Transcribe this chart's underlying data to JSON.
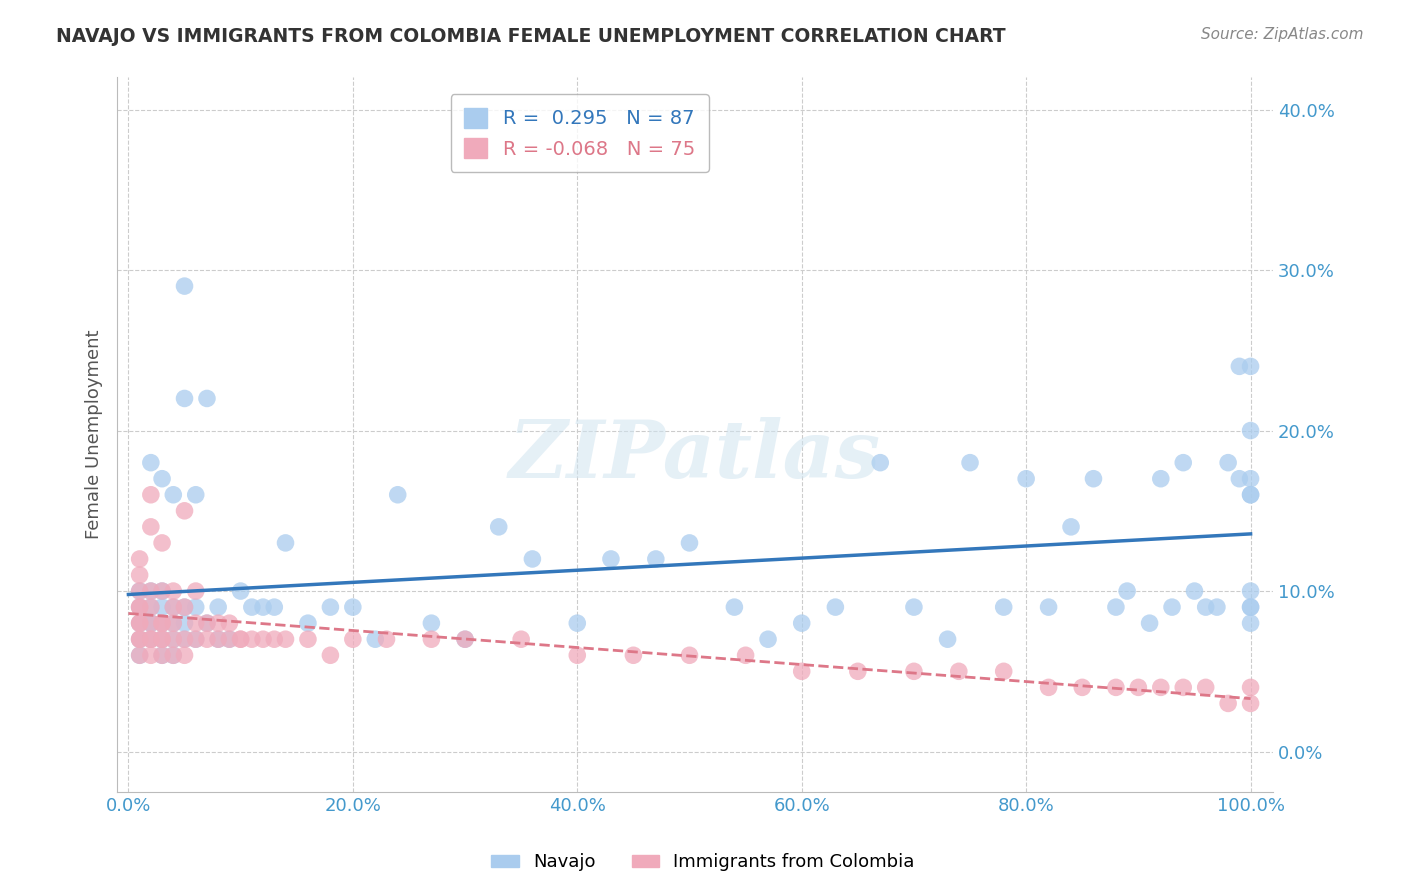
{
  "title": "NAVAJO VS IMMIGRANTS FROM COLOMBIA FEMALE UNEMPLOYMENT CORRELATION CHART",
  "source": "Source: ZipAtlas.com",
  "ylabel": "Female Unemployment",
  "watermark": "ZIPatlas",
  "xlim": [
    -0.01,
    1.02
  ],
  "ylim": [
    -0.025,
    0.42
  ],
  "xticks": [
    0.0,
    0.2,
    0.4,
    0.6,
    0.8,
    1.0
  ],
  "xticklabels": [
    "0.0%",
    "20.0%",
    "40.0%",
    "60.0%",
    "80.0%",
    "100.0%"
  ],
  "yticks": [
    0.0,
    0.1,
    0.2,
    0.3,
    0.4
  ],
  "yticklabels": [
    "0.0%",
    "10.0%",
    "20.0%",
    "30.0%",
    "40.0%"
  ],
  "navajo_R": 0.295,
  "navajo_N": 87,
  "colombia_R": -0.068,
  "colombia_N": 75,
  "navajo_color": "#aaccee",
  "colombia_color": "#f0aabb",
  "navajo_line_color": "#3377bb",
  "colombia_line_color": "#dd7788",
  "grid_color": "#cccccc",
  "background_color": "#ffffff",
  "title_color": "#333333",
  "axis_label_color": "#555555",
  "tick_color": "#4499cc",
  "navajo_x": [
    0.01,
    0.01,
    0.01,
    0.01,
    0.01,
    0.02,
    0.02,
    0.02,
    0.02,
    0.02,
    0.02,
    0.03,
    0.03,
    0.03,
    0.03,
    0.03,
    0.03,
    0.04,
    0.04,
    0.04,
    0.04,
    0.04,
    0.05,
    0.05,
    0.05,
    0.05,
    0.05,
    0.06,
    0.06,
    0.06,
    0.07,
    0.07,
    0.08,
    0.08,
    0.09,
    0.1,
    0.11,
    0.12,
    0.13,
    0.14,
    0.16,
    0.18,
    0.2,
    0.22,
    0.24,
    0.27,
    0.3,
    0.33,
    0.36,
    0.4,
    0.43,
    0.47,
    0.5,
    0.54,
    0.57,
    0.6,
    0.63,
    0.67,
    0.7,
    0.73,
    0.75,
    0.78,
    0.8,
    0.82,
    0.84,
    0.86,
    0.88,
    0.89,
    0.91,
    0.92,
    0.93,
    0.94,
    0.95,
    0.96,
    0.97,
    0.98,
    0.99,
    0.99,
    1.0,
    1.0,
    1.0,
    1.0,
    1.0,
    1.0,
    1.0,
    1.0,
    1.0
  ],
  "navajo_y": [
    0.07,
    0.08,
    0.06,
    0.09,
    0.1,
    0.07,
    0.08,
    0.09,
    0.1,
    0.08,
    0.18,
    0.06,
    0.07,
    0.08,
    0.09,
    0.1,
    0.17,
    0.06,
    0.07,
    0.08,
    0.09,
    0.16,
    0.07,
    0.08,
    0.09,
    0.22,
    0.29,
    0.07,
    0.09,
    0.16,
    0.08,
    0.22,
    0.07,
    0.09,
    0.07,
    0.1,
    0.09,
    0.09,
    0.09,
    0.13,
    0.08,
    0.09,
    0.09,
    0.07,
    0.16,
    0.08,
    0.07,
    0.14,
    0.12,
    0.08,
    0.12,
    0.12,
    0.13,
    0.09,
    0.07,
    0.08,
    0.09,
    0.18,
    0.09,
    0.07,
    0.18,
    0.09,
    0.17,
    0.09,
    0.14,
    0.17,
    0.09,
    0.1,
    0.08,
    0.17,
    0.09,
    0.18,
    0.1,
    0.09,
    0.09,
    0.18,
    0.24,
    0.17,
    0.1,
    0.09,
    0.17,
    0.16,
    0.16,
    0.2,
    0.24,
    0.09,
    0.08
  ],
  "colombia_x": [
    0.01,
    0.01,
    0.01,
    0.01,
    0.01,
    0.01,
    0.01,
    0.01,
    0.01,
    0.01,
    0.02,
    0.02,
    0.02,
    0.02,
    0.02,
    0.02,
    0.02,
    0.02,
    0.03,
    0.03,
    0.03,
    0.03,
    0.03,
    0.03,
    0.03,
    0.04,
    0.04,
    0.04,
    0.04,
    0.04,
    0.05,
    0.05,
    0.05,
    0.05,
    0.06,
    0.06,
    0.06,
    0.07,
    0.07,
    0.08,
    0.08,
    0.09,
    0.09,
    0.1,
    0.1,
    0.11,
    0.12,
    0.13,
    0.14,
    0.16,
    0.18,
    0.2,
    0.23,
    0.27,
    0.3,
    0.35,
    0.4,
    0.45,
    0.5,
    0.55,
    0.6,
    0.65,
    0.7,
    0.74,
    0.78,
    0.82,
    0.85,
    0.88,
    0.9,
    0.92,
    0.94,
    0.96,
    0.98,
    1.0,
    1.0
  ],
  "colombia_y": [
    0.06,
    0.07,
    0.07,
    0.08,
    0.08,
    0.09,
    0.09,
    0.1,
    0.11,
    0.12,
    0.06,
    0.07,
    0.07,
    0.08,
    0.09,
    0.1,
    0.14,
    0.16,
    0.06,
    0.07,
    0.07,
    0.08,
    0.08,
    0.1,
    0.13,
    0.06,
    0.07,
    0.08,
    0.09,
    0.1,
    0.06,
    0.07,
    0.09,
    0.15,
    0.07,
    0.08,
    0.1,
    0.07,
    0.08,
    0.07,
    0.08,
    0.07,
    0.08,
    0.07,
    0.07,
    0.07,
    0.07,
    0.07,
    0.07,
    0.07,
    0.06,
    0.07,
    0.07,
    0.07,
    0.07,
    0.07,
    0.06,
    0.06,
    0.06,
    0.06,
    0.05,
    0.05,
    0.05,
    0.05,
    0.05,
    0.04,
    0.04,
    0.04,
    0.04,
    0.04,
    0.04,
    0.04,
    0.03,
    0.03,
    0.04
  ]
}
